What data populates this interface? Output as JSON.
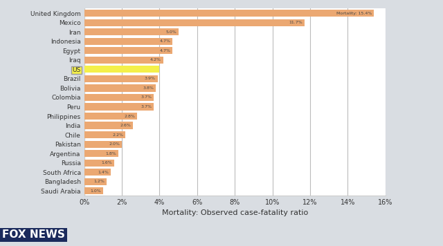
{
  "chart_data": {
    "type": "bar",
    "orientation": "horizontal",
    "x_label": "Mortality: Observed case-fatality ratio",
    "categories": [
      "United Kingdom",
      "Mexico",
      "Iran",
      "Indonesia",
      "Egypt",
      "Iraq",
      "US",
      "Brazil",
      "Bolivia",
      "Colombia",
      "Peru",
      "Philippines",
      "India",
      "Chile",
      "Pakistan",
      "Argentina",
      "Russia",
      "South Africa",
      "Bangladesh",
      "Saudi Arabia"
    ],
    "values": [
      15.4,
      11.7,
      5.0,
      4.7,
      4.7,
      4.2,
      4.0,
      3.9,
      3.8,
      3.7,
      3.7,
      2.8,
      2.6,
      2.2,
      2.0,
      1.8,
      1.6,
      1.4,
      1.2,
      1.0
    ],
    "value_labels": [
      "Mortality: 15.4%",
      "11.7%",
      "5.0%",
      "4.7%",
      "4.7%",
      "4.2%",
      null,
      "3.9%",
      "3.8%",
      "3.7%",
      "3.7%",
      "2.8%",
      "2.6%",
      "2.2%",
      "2.0%",
      "1.8%",
      "1.6%",
      "1.4%",
      "1.2%",
      "1.0%"
    ],
    "colors": [
      "#eba872",
      "#eba872",
      "#eba872",
      "#eba872",
      "#eba872",
      "#eba872",
      "#f4f04a",
      "#eba872",
      "#eba872",
      "#eba872",
      "#eba872",
      "#eba872",
      "#eba872",
      "#eba872",
      "#eba872",
      "#eba872",
      "#eba872",
      "#eba872",
      "#eba872",
      "#eba872"
    ],
    "data_labels": true,
    "grid": true,
    "xlim": [
      0,
      16
    ],
    "xticks": [
      {
        "value": 0,
        "label": "0%"
      },
      {
        "value": 2,
        "label": "2%"
      },
      {
        "value": 4,
        "label": "4%"
      },
      {
        "value": 6,
        "label": "6%"
      },
      {
        "value": 8,
        "label": "8%"
      },
      {
        "value": 10,
        "label": "10%"
      },
      {
        "value": 12,
        "label": "12%"
      },
      {
        "value": 14,
        "label": "14%"
      },
      {
        "value": 16,
        "label": "16%"
      }
    ],
    "annotations": [
      "FOX NEWS"
    ]
  }
}
